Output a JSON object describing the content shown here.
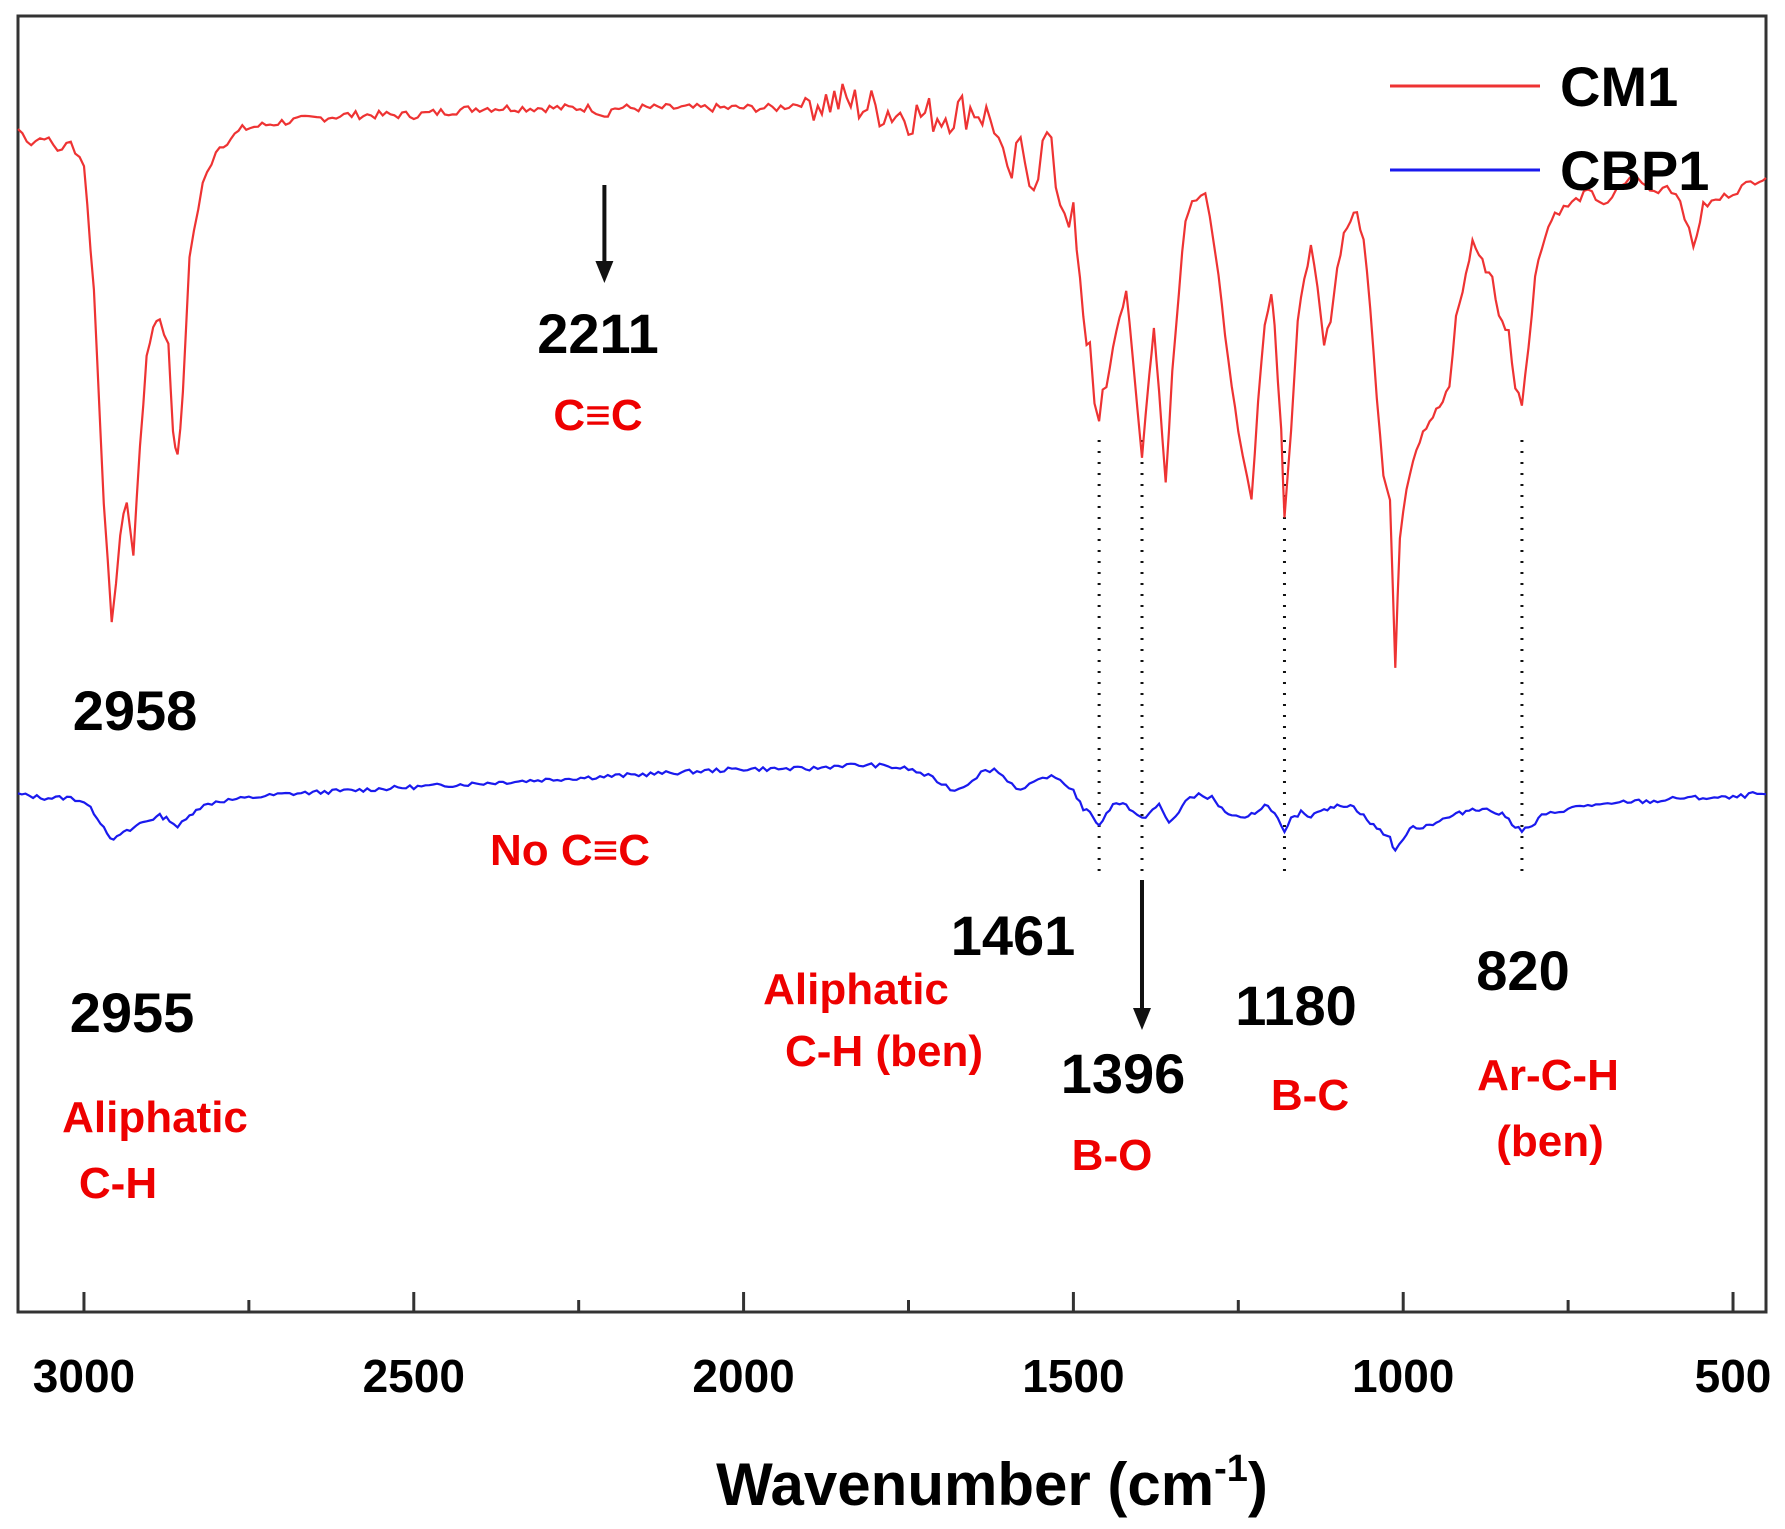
{
  "chart_data": {
    "type": "line",
    "title": "",
    "xlabel": "Wavenumber (cm",
    "xlabel_sup": "-1",
    "xlabel_close": ")",
    "ylabel": "",
    "xlim": [
      3100,
      450
    ],
    "x_reversed": true,
    "x_ticks": [
      3000,
      2500,
      2000,
      1500,
      1000,
      500
    ],
    "x_tick_labels": [
      "3000",
      "2500",
      "2000",
      "1500",
      "1000",
      "500"
    ],
    "y_ticks_shown": false,
    "grid": false,
    "legend": {
      "placement": "top-right",
      "entries": [
        "CM1",
        "CBP1"
      ]
    },
    "series": [
      {
        "name": "CM1",
        "color": "#ee3333",
        "points": [
          [
            3100,
            0.83
          ],
          [
            3080,
            0.81
          ],
          [
            3060,
            0.82
          ],
          [
            3040,
            0.8
          ],
          [
            3020,
            0.81
          ],
          [
            3000,
            0.78
          ],
          [
            2985,
            0.6
          ],
          [
            2970,
            0.3
          ],
          [
            2958,
            0.12
          ],
          [
            2945,
            0.25
          ],
          [
            2935,
            0.3
          ],
          [
            2925,
            0.22
          ],
          [
            2915,
            0.38
          ],
          [
            2905,
            0.5
          ],
          [
            2895,
            0.55
          ],
          [
            2885,
            0.56
          ],
          [
            2872,
            0.52
          ],
          [
            2865,
            0.4
          ],
          [
            2858,
            0.36
          ],
          [
            2850,
            0.45
          ],
          [
            2840,
            0.65
          ],
          [
            2820,
            0.75
          ],
          [
            2800,
            0.8
          ],
          [
            2760,
            0.83
          ],
          [
            2700,
            0.84
          ],
          [
            2600,
            0.85
          ],
          [
            2500,
            0.85
          ],
          [
            2400,
            0.86
          ],
          [
            2300,
            0.86
          ],
          [
            2230,
            0.86
          ],
          [
            2211,
            0.85
          ],
          [
            2195,
            0.86
          ],
          [
            2100,
            0.86
          ],
          [
            2000,
            0.86
          ],
          [
            1950,
            0.86
          ],
          [
            1900,
            0.87
          ],
          [
            1850,
            0.87
          ],
          [
            1800,
            0.86
          ],
          [
            1750,
            0.85
          ],
          [
            1700,
            0.85
          ],
          [
            1650,
            0.86
          ],
          [
            1620,
            0.84
          ],
          [
            1600,
            0.75
          ],
          [
            1580,
            0.8
          ],
          [
            1560,
            0.76
          ],
          [
            1540,
            0.82
          ],
          [
            1520,
            0.73
          ],
          [
            1500,
            0.7
          ],
          [
            1485,
            0.55
          ],
          [
            1475,
            0.52
          ],
          [
            1461,
            0.4
          ],
          [
            1450,
            0.46
          ],
          [
            1440,
            0.52
          ],
          [
            1430,
            0.56
          ],
          [
            1420,
            0.6
          ],
          [
            1410,
            0.5
          ],
          [
            1396,
            0.36
          ],
          [
            1385,
            0.48
          ],
          [
            1378,
            0.55
          ],
          [
            1370,
            0.45
          ],
          [
            1360,
            0.32
          ],
          [
            1350,
            0.48
          ],
          [
            1340,
            0.6
          ],
          [
            1330,
            0.7
          ],
          [
            1320,
            0.73
          ],
          [
            1300,
            0.74
          ],
          [
            1280,
            0.62
          ],
          [
            1265,
            0.5
          ],
          [
            1250,
            0.4
          ],
          [
            1230,
            0.3
          ],
          [
            1220,
            0.44
          ],
          [
            1210,
            0.55
          ],
          [
            1200,
            0.6
          ],
          [
            1195,
            0.55
          ],
          [
            1185,
            0.4
          ],
          [
            1180,
            0.28
          ],
          [
            1170,
            0.4
          ],
          [
            1160,
            0.55
          ],
          [
            1150,
            0.62
          ],
          [
            1140,
            0.66
          ],
          [
            1130,
            0.6
          ],
          [
            1120,
            0.52
          ],
          [
            1110,
            0.56
          ],
          [
            1100,
            0.63
          ],
          [
            1090,
            0.68
          ],
          [
            1080,
            0.7
          ],
          [
            1070,
            0.71
          ],
          [
            1060,
            0.67
          ],
          [
            1050,
            0.58
          ],
          [
            1040,
            0.45
          ],
          [
            1030,
            0.34
          ],
          [
            1020,
            0.3
          ],
          [
            1012,
            0.06
          ],
          [
            1005,
            0.25
          ],
          [
            995,
            0.32
          ],
          [
            985,
            0.36
          ],
          [
            970,
            0.4
          ],
          [
            955,
            0.42
          ],
          [
            940,
            0.44
          ],
          [
            930,
            0.46
          ],
          [
            920,
            0.56
          ],
          [
            905,
            0.62
          ],
          [
            895,
            0.67
          ],
          [
            885,
            0.65
          ],
          [
            875,
            0.63
          ],
          [
            865,
            0.62
          ],
          [
            855,
            0.56
          ],
          [
            840,
            0.54
          ],
          [
            830,
            0.46
          ],
          [
            820,
            0.44
          ],
          [
            810,
            0.52
          ],
          [
            800,
            0.62
          ],
          [
            785,
            0.68
          ],
          [
            770,
            0.71
          ],
          [
            750,
            0.72
          ],
          [
            720,
            0.74
          ],
          [
            690,
            0.72
          ],
          [
            670,
            0.75
          ],
          [
            650,
            0.76
          ],
          [
            620,
            0.74
          ],
          [
            600,
            0.75
          ],
          [
            580,
            0.73
          ],
          [
            560,
            0.66
          ],
          [
            545,
            0.72
          ],
          [
            520,
            0.73
          ],
          [
            500,
            0.74
          ],
          [
            480,
            0.75
          ],
          [
            460,
            0.76
          ],
          [
            450,
            0.76
          ]
        ]
      },
      {
        "name": "CBP1",
        "color": "#1a1aee",
        "points": [
          [
            3100,
            0.54
          ],
          [
            3060,
            0.53
          ],
          [
            3020,
            0.53
          ],
          [
            3000,
            0.52
          ],
          [
            2985,
            0.49
          ],
          [
            2970,
            0.45
          ],
          [
            2955,
            0.41
          ],
          [
            2945,
            0.43
          ],
          [
            2930,
            0.44
          ],
          [
            2915,
            0.46
          ],
          [
            2900,
            0.47
          ],
          [
            2885,
            0.48
          ],
          [
            2870,
            0.47
          ],
          [
            2858,
            0.45
          ],
          [
            2845,
            0.47
          ],
          [
            2830,
            0.5
          ],
          [
            2800,
            0.52
          ],
          [
            2750,
            0.53
          ],
          [
            2700,
            0.54
          ],
          [
            2600,
            0.55
          ],
          [
            2500,
            0.56
          ],
          [
            2400,
            0.57
          ],
          [
            2300,
            0.58
          ],
          [
            2200,
            0.59
          ],
          [
            2100,
            0.6
          ],
          [
            2000,
            0.61
          ],
          [
            1900,
            0.61
          ],
          [
            1850,
            0.62
          ],
          [
            1800,
            0.62
          ],
          [
            1750,
            0.61
          ],
          [
            1720,
            0.59
          ],
          [
            1700,
            0.57
          ],
          [
            1680,
            0.55
          ],
          [
            1660,
            0.57
          ],
          [
            1640,
            0.6
          ],
          [
            1620,
            0.61
          ],
          [
            1600,
            0.58
          ],
          [
            1580,
            0.55
          ],
          [
            1560,
            0.57
          ],
          [
            1540,
            0.59
          ],
          [
            1520,
            0.58
          ],
          [
            1500,
            0.55
          ],
          [
            1485,
            0.5
          ],
          [
            1470,
            0.48
          ],
          [
            1461,
            0.45
          ],
          [
            1450,
            0.49
          ],
          [
            1440,
            0.51
          ],
          [
            1425,
            0.52
          ],
          [
            1410,
            0.49
          ],
          [
            1396,
            0.47
          ],
          [
            1385,
            0.49
          ],
          [
            1370,
            0.51
          ],
          [
            1355,
            0.46
          ],
          [
            1345,
            0.48
          ],
          [
            1330,
            0.52
          ],
          [
            1310,
            0.54
          ],
          [
            1290,
            0.53
          ],
          [
            1275,
            0.5
          ],
          [
            1260,
            0.48
          ],
          [
            1240,
            0.47
          ],
          [
            1225,
            0.49
          ],
          [
            1210,
            0.51
          ],
          [
            1200,
            0.5
          ],
          [
            1190,
            0.47
          ],
          [
            1180,
            0.43
          ],
          [
            1170,
            0.47
          ],
          [
            1155,
            0.49
          ],
          [
            1140,
            0.48
          ],
          [
            1125,
            0.5
          ],
          [
            1110,
            0.5
          ],
          [
            1095,
            0.51
          ],
          [
            1080,
            0.51
          ],
          [
            1065,
            0.49
          ],
          [
            1050,
            0.46
          ],
          [
            1035,
            0.44
          ],
          [
            1020,
            0.42
          ],
          [
            1012,
            0.38
          ],
          [
            1000,
            0.42
          ],
          [
            985,
            0.45
          ],
          [
            970,
            0.45
          ],
          [
            955,
            0.46
          ],
          [
            940,
            0.47
          ],
          [
            925,
            0.48
          ],
          [
            910,
            0.49
          ],
          [
            895,
            0.5
          ],
          [
            880,
            0.5
          ],
          [
            860,
            0.49
          ],
          [
            845,
            0.48
          ],
          [
            835,
            0.46
          ],
          [
            820,
            0.44
          ],
          [
            805,
            0.45
          ],
          [
            790,
            0.48
          ],
          [
            770,
            0.49
          ],
          [
            750,
            0.5
          ],
          [
            720,
            0.51
          ],
          [
            690,
            0.51
          ],
          [
            660,
            0.52
          ],
          [
            620,
            0.52
          ],
          [
            580,
            0.53
          ],
          [
            540,
            0.53
          ],
          [
            500,
            0.53
          ],
          [
            470,
            0.54
          ],
          [
            450,
            0.54
          ]
        ]
      }
    ],
    "annotations": [
      {
        "text": "2211",
        "kind": "peak",
        "series": "CM1",
        "x": 2211
      },
      {
        "text": "C≡C",
        "kind": "assignment",
        "series": "CM1",
        "x": 2211
      },
      {
        "text": "2958",
        "kind": "peak",
        "series": "CM1",
        "x": 2958
      },
      {
        "text": "No  C≡C",
        "kind": "assignment",
        "series": "CBP1",
        "x": 2200
      },
      {
        "text": "2955",
        "kind": "peak",
        "series": "CBP1",
        "x": 2955
      },
      {
        "text": "Aliphatic",
        "kind": "assignment",
        "series": "CBP1",
        "x": 2955
      },
      {
        "text": "C-H",
        "kind": "assignment",
        "series": "CBP1",
        "x": 2955
      },
      {
        "text": "1461",
        "kind": "peak",
        "series": "CBP1",
        "x": 1461
      },
      {
        "text": "Aliphatic",
        "kind": "assignment",
        "series": "CBP1",
        "x": 1461
      },
      {
        "text": "C-H (ben)",
        "kind": "assignment",
        "series": "CBP1",
        "x": 1461
      },
      {
        "text": "1396",
        "kind": "peak",
        "series": "CBP1",
        "x": 1396
      },
      {
        "text": "B-O",
        "kind": "assignment",
        "series": "CBP1",
        "x": 1396
      },
      {
        "text": "1180",
        "kind": "peak",
        "series": "CBP1",
        "x": 1180
      },
      {
        "text": "B-C",
        "kind": "assignment",
        "series": "CBP1",
        "x": 1180
      },
      {
        "text": "820",
        "kind": "peak",
        "series": "CBP1",
        "x": 820
      },
      {
        "text": "Ar-C-H",
        "kind": "assignment",
        "series": "CBP1",
        "x": 820
      },
      {
        "text": "(ben)",
        "kind": "assignment",
        "series": "CBP1",
        "x": 820
      }
    ],
    "dotted_guides_at": [
      1461,
      1396,
      1180,
      820
    ],
    "arrows_at": [
      2211,
      1396
    ]
  }
}
